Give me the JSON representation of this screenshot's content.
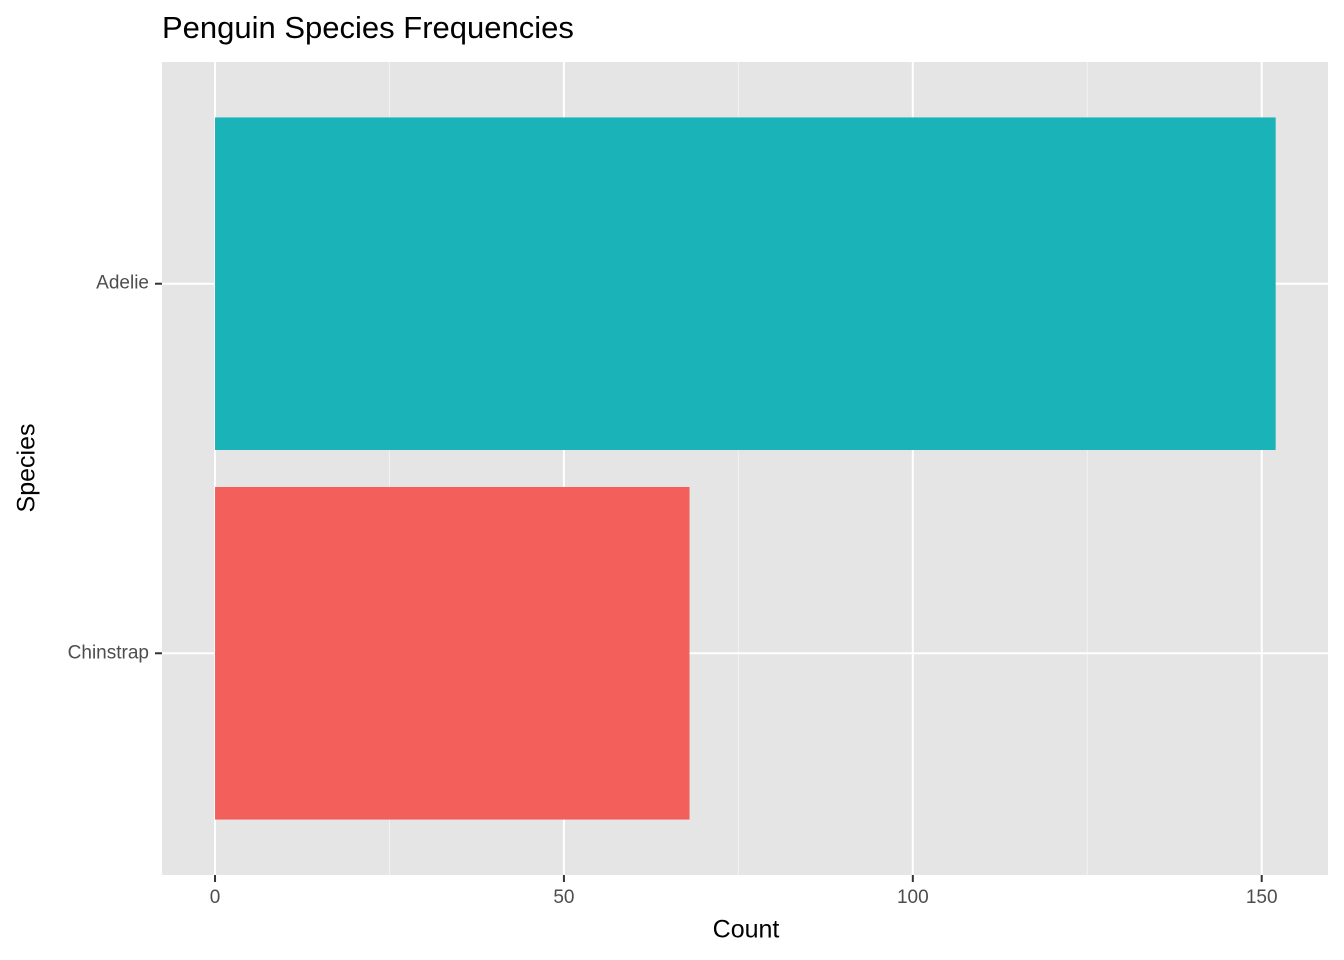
{
  "chart_data": {
    "type": "bar",
    "orientation": "horizontal",
    "title": "Penguin Species Frequencies",
    "x_label": "Count",
    "y_label": "Species",
    "categories": [
      "Adelie",
      "Chinstrap"
    ],
    "values": [
      152,
      68
    ],
    "colors": [
      "#1AB3B8",
      "#F3605B"
    ],
    "xlim": [
      -7.6,
      159.5
    ],
    "xticks": [
      0,
      50,
      100,
      150
    ],
    "x_minor_ticks": [
      25,
      75,
      125
    ],
    "grid": true
  }
}
